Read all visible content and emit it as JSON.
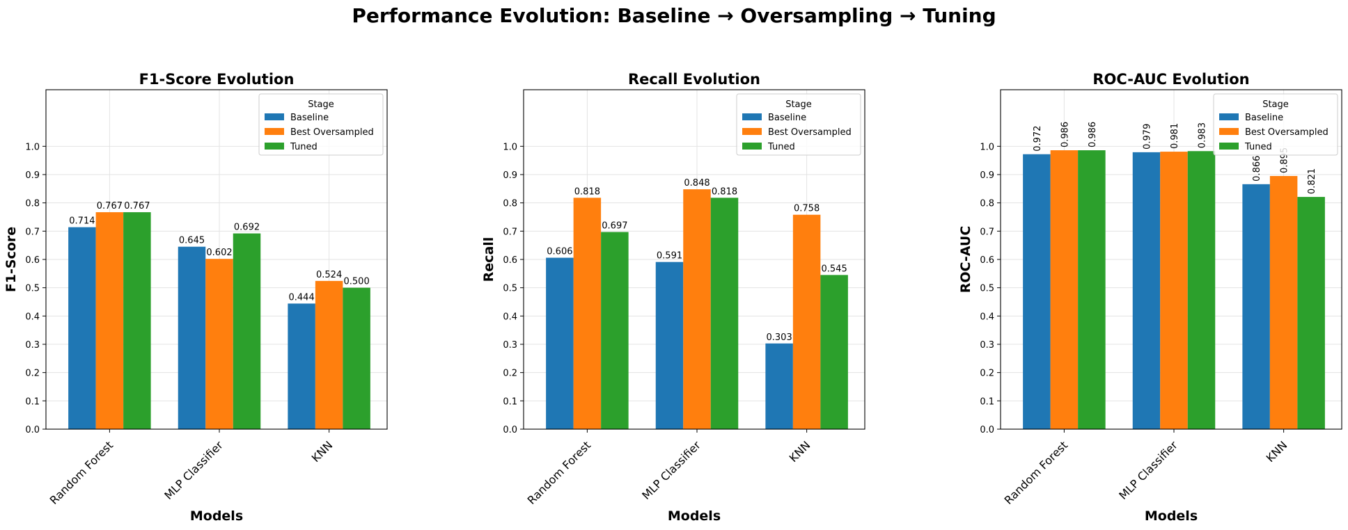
{
  "figure": {
    "suptitle": "Performance Evolution: Baseline → Oversampling → Tuning"
  },
  "colors": {
    "Baseline": "#1f77b4",
    "Best Oversampled": "#ff7f0e",
    "Tuned": "#2ca02c"
  },
  "chart_data": [
    {
      "type": "bar",
      "title": "F1-Score Evolution",
      "xlabel": "Models",
      "ylabel": "F1-Score",
      "categories": [
        "Random Forest",
        "MLP Classifier",
        "KNN"
      ],
      "series": [
        {
          "name": "Baseline",
          "values": [
            0.714,
            0.645,
            0.444
          ],
          "labels": [
            "0.714",
            "0.645",
            "0.444"
          ]
        },
        {
          "name": "Best Oversampled",
          "values": [
            0.767,
            0.602,
            0.524
          ],
          "labels": [
            "0.767",
            "0.602",
            "0.524"
          ]
        },
        {
          "name": "Tuned",
          "values": [
            0.767,
            0.692,
            0.5
          ],
          "labels": [
            "0.767",
            "0.692",
            "0.500"
          ]
        }
      ],
      "ylim": [
        0,
        1.2
      ],
      "yticks": [
        "0.0",
        "0.1",
        "0.2",
        "0.3",
        "0.4",
        "0.5",
        "0.6",
        "0.7",
        "0.8",
        "0.9",
        "1.0"
      ],
      "label_rotation": "horizontal",
      "grid": true,
      "legend": {
        "title": "Stage",
        "placement": "upper right"
      }
    },
    {
      "type": "bar",
      "title": "Recall Evolution",
      "xlabel": "Models",
      "ylabel": "Recall",
      "categories": [
        "Random Forest",
        "MLP Classifier",
        "KNN"
      ],
      "series": [
        {
          "name": "Baseline",
          "values": [
            0.606,
            0.591,
            0.303
          ],
          "labels": [
            "0.606",
            "0.591",
            "0.303"
          ]
        },
        {
          "name": "Best Oversampled",
          "values": [
            0.818,
            0.848,
            0.758
          ],
          "labels": [
            "0.818",
            "0.848",
            "0.758"
          ]
        },
        {
          "name": "Tuned",
          "values": [
            0.697,
            0.818,
            0.545
          ],
          "labels": [
            "0.697",
            "0.818",
            "0.545"
          ]
        }
      ],
      "ylim": [
        0,
        1.2
      ],
      "yticks": [
        "0.0",
        "0.1",
        "0.2",
        "0.3",
        "0.4",
        "0.5",
        "0.6",
        "0.7",
        "0.8",
        "0.9",
        "1.0"
      ],
      "label_rotation": "horizontal",
      "grid": true,
      "legend": {
        "title": "Stage",
        "placement": "upper right"
      }
    },
    {
      "type": "bar",
      "title": "ROC-AUC Evolution",
      "xlabel": "Models",
      "ylabel": "ROC-AUC",
      "categories": [
        "Random Forest",
        "MLP Classifier",
        "KNN"
      ],
      "series": [
        {
          "name": "Baseline",
          "values": [
            0.972,
            0.979,
            0.866
          ],
          "labels": [
            "0.972",
            "0.979",
            "0.866"
          ]
        },
        {
          "name": "Best Oversampled",
          "values": [
            0.986,
            0.981,
            0.895
          ],
          "labels": [
            "0.986",
            "0.981",
            "0.895"
          ]
        },
        {
          "name": "Tuned",
          "values": [
            0.986,
            0.983,
            0.821
          ],
          "labels": [
            "0.986",
            "0.983",
            "0.821"
          ]
        }
      ],
      "ylim": [
        0,
        1.2
      ],
      "yticks": [
        "0.0",
        "0.1",
        "0.2",
        "0.3",
        "0.4",
        "0.5",
        "0.6",
        "0.7",
        "0.8",
        "0.9",
        "1.0"
      ],
      "label_rotation": "vertical",
      "grid": true,
      "legend": {
        "title": "Stage",
        "placement": "upper right"
      }
    }
  ]
}
